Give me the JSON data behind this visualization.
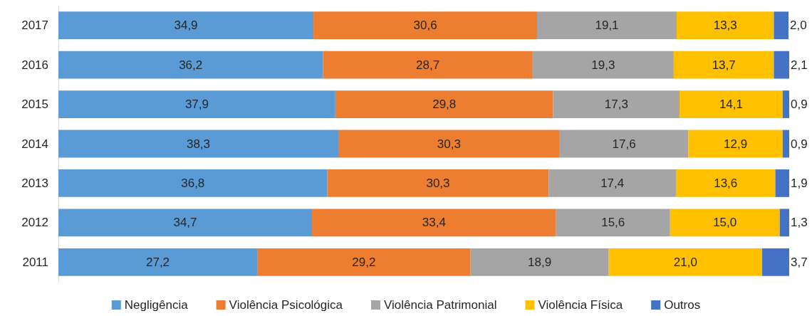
{
  "chart_data": {
    "type": "bar",
    "orientation": "horizontal",
    "stacked": true,
    "legend": "bottom",
    "categories": [
      "2017",
      "2016",
      "2015",
      "2014",
      "2013",
      "2012",
      "2011"
    ],
    "series": [
      {
        "name": "Negligência",
        "color": "#5b9bd5",
        "values": [
          34.9,
          36.2,
          37.9,
          38.3,
          36.8,
          34.7,
          27.2
        ],
        "value_labels": [
          "34,9",
          "36,2",
          "37,9",
          "38,3",
          "36,8",
          "34,7",
          "27,2"
        ]
      },
      {
        "name": "Violência Psicológica",
        "color": "#ed7d31",
        "values": [
          30.6,
          28.7,
          29.8,
          30.3,
          30.3,
          33.4,
          29.2
        ],
        "value_labels": [
          "30,6",
          "28,7",
          "29,8",
          "30,3",
          "30,3",
          "33,4",
          "29,2"
        ]
      },
      {
        "name": "Violência Patrimonial",
        "color": "#a5a5a5",
        "values": [
          19.1,
          19.3,
          17.3,
          17.6,
          17.4,
          15.6,
          18.9
        ],
        "value_labels": [
          "19,1",
          "19,3",
          "17,3",
          "17,6",
          "17,4",
          "15,6",
          "18,9"
        ]
      },
      {
        "name": "Violência Física",
        "color": "#ffc000",
        "values": [
          13.3,
          13.7,
          14.1,
          12.9,
          13.6,
          15.0,
          21.0
        ],
        "value_labels": [
          "13,3",
          "13,7",
          "14,1",
          "12,9",
          "13,6",
          "15,0",
          "21,0"
        ]
      },
      {
        "name": "Outros",
        "color": "#4472c4",
        "values": [
          2.0,
          2.1,
          0.9,
          0.9,
          1.9,
          1.3,
          3.7
        ],
        "value_labels": [
          "2,0",
          "2,1",
          "0,9",
          "0,9",
          "1,9",
          "1,3",
          "3,7"
        ]
      }
    ]
  }
}
